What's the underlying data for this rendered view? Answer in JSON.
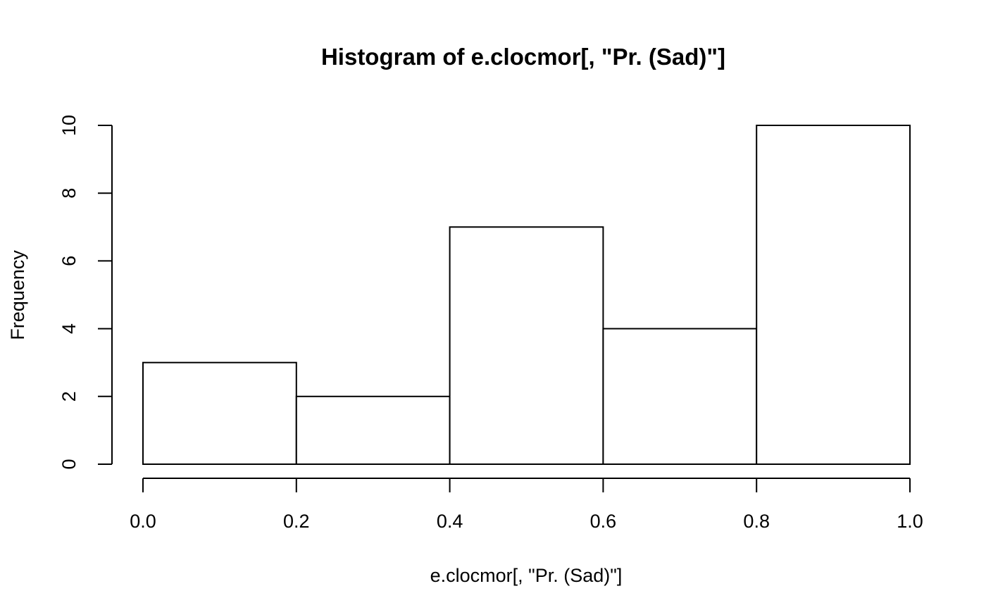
{
  "chart_data": {
    "type": "bar",
    "title": "Histogram of e.clocmor[, \"Pr. (Sad)\"]",
    "xlabel": "e.clocmor[, \"Pr. (Sad)\"]",
    "ylabel": "Frequency",
    "bins": [
      {
        "start": 0.0,
        "end": 0.2,
        "count": 3
      },
      {
        "start": 0.2,
        "end": 0.4,
        "count": 2
      },
      {
        "start": 0.4,
        "end": 0.6,
        "count": 7
      },
      {
        "start": 0.6,
        "end": 0.8,
        "count": 4
      },
      {
        "start": 0.8,
        "end": 1.0,
        "count": 10
      }
    ],
    "xlim": [
      0.0,
      1.0
    ],
    "ylim": [
      0,
      10
    ],
    "x_ticks": [
      "0.0",
      "0.2",
      "0.4",
      "0.6",
      "0.8",
      "1.0"
    ],
    "y_ticks": [
      "0",
      "2",
      "4",
      "6",
      "8",
      "10"
    ],
    "grid": false,
    "colors": {
      "bar_fill": "#ffffff",
      "bar_stroke": "#000000",
      "background": "#ffffff"
    }
  }
}
